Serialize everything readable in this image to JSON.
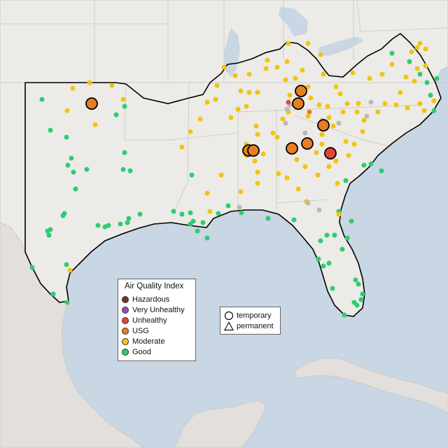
{
  "legend": {
    "title": "Air Quality Index",
    "categories": [
      {
        "label": "Hazardous",
        "color": "#7e2e2a"
      },
      {
        "label": "Very Unhealthy",
        "color": "#8f4fb5"
      },
      {
        "label": "Unhealthy",
        "color": "#e2463a"
      },
      {
        "label": "USG",
        "color": "#e67e22"
      },
      {
        "label": "Moderate",
        "color": "#f1c40f"
      },
      {
        "label": "Good",
        "color": "#2ecc71"
      }
    ]
  },
  "monitor_types": [
    {
      "label": "temporary",
      "icon": "circle-outline-icon"
    },
    {
      "label": "permanent",
      "icon": "triangle-outline-icon"
    }
  ],
  "colors": {
    "water": "#c9d6e3",
    "land": "#ecebe7",
    "outside_land": "#e2dfdc",
    "border": "#c8c6c4",
    "highlight_outline": "#000000",
    "no_data": "#b9b9b9"
  }
}
